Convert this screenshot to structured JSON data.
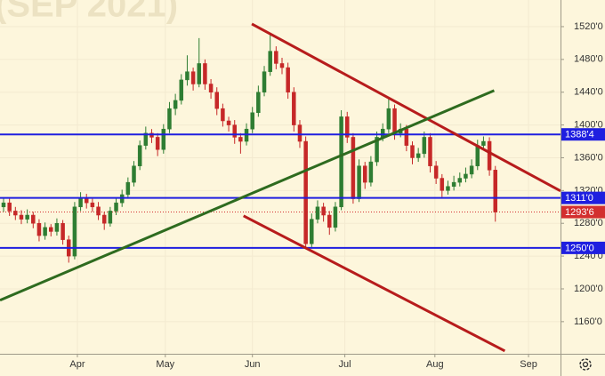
{
  "chart_data": {
    "type": "candlestick",
    "title": "(SEP 2021)",
    "categories": [
      null,
      null,
      null,
      null,
      null,
      null,
      null,
      null,
      null,
      null,
      null,
      null,
      null,
      null,
      null,
      null,
      null,
      null,
      null,
      null,
      null,
      null,
      null,
      null,
      null,
      null,
      null,
      null,
      null,
      null,
      null,
      null,
      null,
      null,
      null,
      null,
      null,
      null,
      null,
      null,
      null,
      null,
      null,
      null,
      null,
      null,
      null,
      null,
      null,
      null,
      null,
      null,
      null,
      null,
      null,
      null,
      null,
      null,
      null,
      null,
      null,
      null,
      null,
      null,
      null,
      null,
      null,
      null,
      null,
      null,
      null,
      null,
      null,
      null,
      null,
      null,
      null,
      null,
      null,
      null,
      null,
      null,
      null,
      null
    ],
    "ohlc": [
      [
        1300,
        1311,
        1294,
        1305
      ],
      [
        1305,
        1310,
        1289,
        1295
      ],
      [
        1295,
        1300,
        1284,
        1290
      ],
      [
        1290,
        1296,
        1279,
        1285
      ],
      [
        1285,
        1297,
        1280,
        1290
      ],
      [
        1290,
        1294,
        1274,
        1280
      ],
      [
        1280,
        1285,
        1258,
        1265
      ],
      [
        1265,
        1281,
        1260,
        1275
      ],
      [
        1275,
        1279,
        1264,
        1270
      ],
      [
        1270,
        1286,
        1265,
        1280
      ],
      [
        1280,
        1284,
        1254,
        1260
      ],
      [
        1260,
        1265,
        1232,
        1240
      ],
      [
        1240,
        1306,
        1236,
        1300
      ],
      [
        1300,
        1318,
        1295,
        1310
      ],
      [
        1310,
        1316,
        1298,
        1305
      ],
      [
        1305,
        1310,
        1294,
        1300
      ],
      [
        1300,
        1306,
        1284,
        1290
      ],
      [
        1290,
        1294,
        1272,
        1280
      ],
      [
        1280,
        1300,
        1276,
        1295
      ],
      [
        1295,
        1311,
        1290,
        1305
      ],
      [
        1305,
        1321,
        1300,
        1315
      ],
      [
        1315,
        1336,
        1310,
        1330
      ],
      [
        1330,
        1356,
        1325,
        1350
      ],
      [
        1350,
        1381,
        1345,
        1375
      ],
      [
        1375,
        1398,
        1370,
        1390
      ],
      [
        1390,
        1395,
        1378,
        1385
      ],
      [
        1385,
        1390,
        1362,
        1370
      ],
      [
        1370,
        1401,
        1365,
        1395
      ],
      [
        1395,
        1428,
        1390,
        1420
      ],
      [
        1420,
        1438,
        1412,
        1430
      ],
      [
        1430,
        1462,
        1425,
        1455
      ],
      [
        1455,
        1485,
        1448,
        1465
      ],
      [
        1465,
        1470,
        1442,
        1450
      ],
      [
        1450,
        1506,
        1446,
        1475
      ],
      [
        1475,
        1480,
        1443,
        1450
      ],
      [
        1450,
        1456,
        1432,
        1440
      ],
      [
        1440,
        1446,
        1412,
        1420
      ],
      [
        1420,
        1426,
        1398,
        1405
      ],
      [
        1405,
        1410,
        1392,
        1400
      ],
      [
        1400,
        1406,
        1377,
        1385
      ],
      [
        1385,
        1390,
        1365,
        1380
      ],
      [
        1380,
        1402,
        1375,
        1395
      ],
      [
        1395,
        1422,
        1390,
        1415
      ],
      [
        1415,
        1448,
        1410,
        1440
      ],
      [
        1440,
        1472,
        1435,
        1465
      ],
      [
        1465,
        1510,
        1460,
        1490
      ],
      [
        1490,
        1496,
        1468,
        1475
      ],
      [
        1475,
        1482,
        1462,
        1470
      ],
      [
        1470,
        1476,
        1432,
        1440
      ],
      [
        1440,
        1446,
        1392,
        1400
      ],
      [
        1400,
        1406,
        1372,
        1380
      ],
      [
        1380,
        1386,
        1250,
        1255
      ],
      [
        1255,
        1292,
        1250,
        1285
      ],
      [
        1285,
        1308,
        1280,
        1300
      ],
      [
        1300,
        1305,
        1282,
        1290
      ],
      [
        1290,
        1295,
        1266,
        1275
      ],
      [
        1275,
        1306,
        1270,
        1300
      ],
      [
        1300,
        1418,
        1296,
        1410
      ],
      [
        1410,
        1416,
        1378,
        1385
      ],
      [
        1385,
        1390,
        1304,
        1310
      ],
      [
        1310,
        1358,
        1306,
        1350
      ],
      [
        1350,
        1355,
        1322,
        1330
      ],
      [
        1330,
        1362,
        1325,
        1355
      ],
      [
        1355,
        1392,
        1350,
        1385
      ],
      [
        1385,
        1402,
        1380,
        1395
      ],
      [
        1395,
        1432,
        1390,
        1420
      ],
      [
        1420,
        1425,
        1382,
        1390
      ],
      [
        1390,
        1402,
        1385,
        1395
      ],
      [
        1395,
        1400,
        1368,
        1375
      ],
      [
        1375,
        1380,
        1352,
        1360
      ],
      [
        1360,
        1372,
        1355,
        1365
      ],
      [
        1365,
        1392,
        1360,
        1385
      ],
      [
        1385,
        1390,
        1342,
        1350
      ],
      [
        1350,
        1356,
        1328,
        1335
      ],
      [
        1335,
        1340,
        1312,
        1320
      ],
      [
        1320,
        1332,
        1315,
        1325
      ],
      [
        1325,
        1338,
        1320,
        1330
      ],
      [
        1330,
        1342,
        1325,
        1335
      ],
      [
        1335,
        1348,
        1330,
        1340
      ],
      [
        1340,
        1358,
        1335,
        1350
      ],
      [
        1350,
        1382,
        1345,
        1375
      ],
      [
        1375,
        1386,
        1370,
        1380
      ],
      [
        1380,
        1385,
        1338,
        1345
      ],
      [
        1345,
        1350,
        1282,
        1293.75
      ]
    ],
    "up_color": "#2e7d32",
    "down_color": "#c62828",
    "xlim": [
      -0.6,
      94
    ],
    "xticks": [
      {
        "value": 12.46,
        "label": "Apr"
      },
      {
        "value": 27.3,
        "label": "May"
      },
      {
        "value": 42.0,
        "label": "Jun"
      },
      {
        "value": 57.6,
        "label": "Jul"
      },
      {
        "value": 72.8,
        "label": "Aug"
      },
      {
        "value": 88.6,
        "label": "Sep"
      }
    ],
    "ylim": [
      1120.8,
      1552.5
    ],
    "yticks": [
      {
        "value": 1160,
        "label": "1160'0"
      },
      {
        "value": 1200,
        "label": "1200'0"
      },
      {
        "value": 1240,
        "label": "1240'0"
      },
      {
        "value": 1280,
        "label": "1280'0"
      },
      {
        "value": 1320,
        "label": "1320'0"
      },
      {
        "value": 1360,
        "label": "1360'0"
      },
      {
        "value": 1400,
        "label": "1400'0"
      },
      {
        "value": 1440,
        "label": "1440'0"
      },
      {
        "value": 1480,
        "label": "1480'0"
      },
      {
        "value": 1520,
        "label": "1520'0"
      }
    ],
    "levels": [
      {
        "value": 1388.5,
        "label": "1388'4",
        "color": "#1f1fe0"
      },
      {
        "value": 1311,
        "label": "1311'0",
        "color": "#1f1fe0"
      },
      {
        "value": 1250,
        "label": "1250'0",
        "color": "#1f1fe0"
      }
    ],
    "last_price": {
      "value": 1293.75,
      "label": "1293'6",
      "color": "#d32f2f"
    },
    "trendlines": [
      {
        "color": "#b71c1c",
        "x": [
          41.9,
          94
        ],
        "values": [
          1523.3,
          1319.5
        ]
      },
      {
        "color": "#2e6b1f",
        "x": [
          -0.6,
          82.8
        ],
        "values": [
          1186.1,
          1442
        ]
      },
      {
        "color": "#b71c1c",
        "x": [
          40.5,
          84.6
        ],
        "values": [
          1289.1,
          1124.3
        ]
      }
    ]
  }
}
